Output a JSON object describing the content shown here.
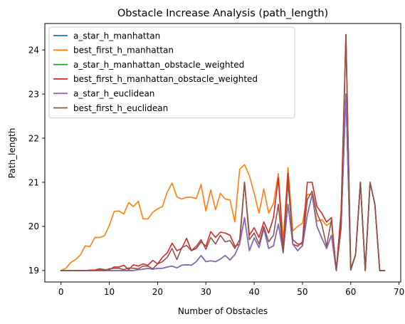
{
  "chart_data": {
    "type": "line",
    "title": "Obstacle Increase Analysis (path_length)",
    "xlabel": "Number of Obstacles",
    "ylabel": "Path_length",
    "xlim": [
      -3.35,
      70.35
    ],
    "ylim": [
      18.74,
      24.6
    ],
    "xticks": [
      0,
      10,
      20,
      30,
      40,
      50,
      60,
      70
    ],
    "yticks": [
      19,
      20,
      21,
      22,
      23,
      24
    ],
    "grid": false,
    "legend_position": "top-left",
    "x": [
      0,
      1,
      2,
      3,
      4,
      5,
      6,
      7,
      8,
      9,
      10,
      11,
      12,
      13,
      14,
      15,
      16,
      17,
      18,
      19,
      20,
      21,
      22,
      23,
      24,
      25,
      26,
      27,
      28,
      29,
      30,
      31,
      32,
      33,
      34,
      35,
      36,
      37,
      38,
      39,
      40,
      41,
      42,
      43,
      44,
      45,
      46,
      47,
      48,
      49,
      50,
      51,
      52,
      53,
      54,
      55,
      56,
      57,
      58,
      59,
      60,
      61,
      62,
      63,
      64,
      65,
      66,
      67
    ],
    "series": [
      {
        "name": "a_star_h_manhattan",
        "color": "#1f77b4",
        "values": [
          19,
          19,
          19,
          19,
          19,
          19,
          19,
          19,
          19,
          19,
          19,
          19,
          19,
          19,
          19,
          19,
          19.02,
          19.03,
          19.05,
          19.03,
          19.05,
          19.05,
          19.08,
          19.1,
          19.06,
          19.12,
          19.13,
          19.12,
          19.2,
          19.34,
          19.2,
          19.22,
          19.2,
          19.26,
          19.34,
          19.24,
          19.36,
          19.6,
          20.2,
          19.45,
          19.74,
          19.52,
          19.95,
          19.5,
          19.56,
          20.05,
          19.42,
          20.5,
          19.6,
          19.45,
          19.56,
          20.25,
          20.72,
          20,
          19.74,
          19.5,
          19.8,
          19,
          19.99,
          23,
          19.01,
          19.36,
          21,
          19,
          21,
          20.5,
          19,
          19
        ]
      },
      {
        "name": "best_first_h_manhattan",
        "color": "#ff7f0e",
        "values": [
          19,
          19.05,
          19.18,
          19.25,
          19.35,
          19.56,
          19.54,
          19.75,
          19.75,
          19.79,
          20.02,
          20.34,
          20.35,
          20.28,
          20.54,
          20.45,
          20.57,
          20.17,
          20.17,
          20.32,
          20.4,
          20.45,
          20.78,
          20.98,
          20.67,
          20.62,
          20.66,
          20.66,
          20.63,
          20.95,
          20.35,
          20.83,
          20.38,
          20.75,
          20.62,
          20.6,
          20.1,
          21.3,
          21.4,
          21.15,
          20.75,
          20.3,
          20.85,
          20.3,
          20.52,
          21.2,
          19.65,
          21.33,
          19.9,
          20,
          20.07,
          20.72,
          20.73,
          20.12,
          20.15,
          20.02,
          20.1,
          19,
          20.35,
          24.35,
          19.04,
          19.36,
          21,
          19,
          21,
          20.5,
          19,
          19
        ]
      },
      {
        "name": "a_star_h_manhattan_obstacle_weighted",
        "color": "#2ca02c",
        "values": [
          19,
          19,
          19,
          19,
          19,
          19,
          19,
          19,
          19,
          19,
          19,
          19,
          19,
          19,
          19,
          19,
          19.02,
          19.03,
          19.05,
          19.03,
          19.05,
          19.05,
          19.08,
          19.1,
          19.06,
          19.12,
          19.13,
          19.12,
          19.2,
          19.34,
          19.2,
          19.22,
          19.2,
          19.26,
          19.34,
          19.24,
          19.36,
          19.6,
          20.2,
          19.45,
          19.74,
          19.52,
          19.95,
          19.5,
          19.56,
          20.05,
          19.42,
          20.5,
          19.6,
          19.45,
          19.56,
          20.25,
          20.72,
          20,
          19.74,
          19.5,
          19.8,
          19,
          19.99,
          23,
          19.01,
          19.36,
          21,
          19,
          21,
          20.5,
          19,
          19
        ]
      },
      {
        "name": "best_first_h_manhattan_obstacle_weighted",
        "color": "#d62728",
        "values": [
          19,
          19,
          19,
          19,
          19,
          19,
          19.01,
          19.01,
          19.04,
          19.02,
          19.02,
          19.08,
          19.08,
          19.12,
          19.02,
          19.13,
          19.1,
          19.15,
          19.12,
          19.23,
          19.15,
          19.3,
          19.4,
          19.62,
          19.45,
          19.5,
          19.73,
          19.45,
          19.5,
          19.65,
          19.55,
          19.88,
          19.75,
          19.87,
          19.85,
          19.8,
          19.55,
          19.6,
          21,
          19.8,
          19.97,
          19.75,
          20.1,
          19.85,
          20.2,
          21.1,
          19.45,
          21.2,
          19.6,
          19.55,
          19.65,
          21,
          21,
          20.45,
          20.3,
          20.1,
          20.2,
          19,
          20.3,
          24.35,
          19.04,
          19.36,
          21,
          19,
          21,
          20.5,
          19,
          19
        ]
      },
      {
        "name": "a_star_h_euclidean",
        "color": "#9467bd",
        "values": [
          19,
          19,
          19,
          19,
          19,
          19,
          19,
          19,
          19,
          19,
          19,
          19,
          19,
          19,
          19,
          19,
          19.02,
          19.03,
          19.05,
          19.03,
          19.05,
          19.05,
          19.08,
          19.1,
          19.06,
          19.12,
          19.13,
          19.12,
          19.2,
          19.34,
          19.2,
          19.22,
          19.2,
          19.26,
          19.34,
          19.24,
          19.36,
          19.6,
          20.2,
          19.45,
          19.74,
          19.52,
          19.95,
          19.5,
          19.56,
          20.05,
          19.42,
          20.5,
          19.6,
          19.45,
          19.56,
          20.25,
          20.72,
          20,
          19.74,
          19.5,
          19.8,
          19,
          19.99,
          23,
          19.01,
          19.36,
          21,
          19,
          21,
          20.5,
          19,
          19
        ]
      },
      {
        "name": "best_first_h_euclidean",
        "color": "#8c564b",
        "values": [
          19,
          19,
          19,
          19,
          19,
          19,
          19,
          19,
          19.01,
          19,
          19.04,
          19.05,
          19.05,
          19.02,
          19.06,
          19.05,
          19.04,
          19.1,
          19.1,
          19.04,
          19.15,
          19.2,
          19.3,
          19.5,
          19.25,
          19.52,
          19.57,
          19.45,
          19.55,
          19.7,
          19.48,
          19.75,
          19.6,
          19.8,
          19.65,
          19.68,
          19.5,
          19.7,
          21,
          19.7,
          19.85,
          19.6,
          20,
          19.65,
          19.8,
          20.5,
          19.4,
          21,
          19.7,
          19.6,
          19.6,
          20.6,
          20.8,
          20.3,
          20.05,
          19.55,
          20.15,
          19,
          19.97,
          24.35,
          19.02,
          19.36,
          21,
          19,
          21,
          20.5,
          19,
          19
        ]
      }
    ]
  }
}
